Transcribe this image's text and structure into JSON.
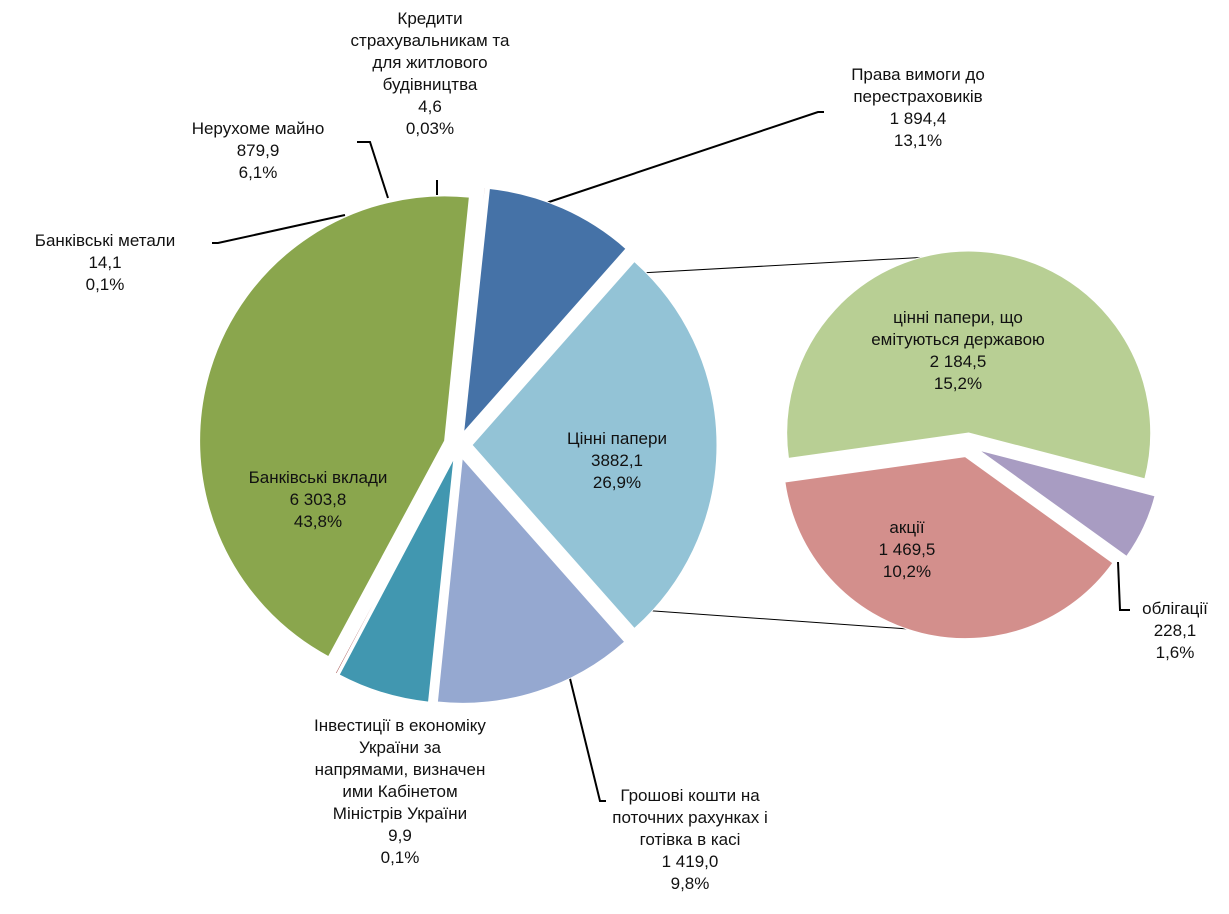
{
  "chart_data": {
    "type": "pie-of-pie",
    "categories": [
      "Цінні папери",
      "Права вимоги до\nперестраховиків",
      "Кредити\nстрахувальникам та\nдля житлового\nбудівництва",
      "Нерухоме майно",
      "Банківські метали",
      "Банківські вклади",
      "Інвестиції в економіку\nУкраїни за\nнапрямами, визначен\nими Кабінетом\nМіністрів України",
      "Грошові кошти на\nпоточних рахунках і\nготівка в касі"
    ],
    "values": [
      3882.1,
      1894.4,
      4.6,
      879.9,
      14.1,
      6303.8,
      9.9,
      1419.0
    ],
    "value_labels": [
      "3882,1",
      "1 894,4",
      "4,6",
      "879,9",
      "14,1",
      "6 303,8",
      "9,9",
      "1 419,0"
    ],
    "percents": [
      26.9,
      13.1,
      0.03,
      6.1,
      0.1,
      43.8,
      0.1,
      9.8
    ],
    "percent_labels": [
      "26,9%",
      "13,1%",
      "0,03%",
      "6,1%",
      "0,1%",
      "43,8%",
      "0,1%",
      "9,8%"
    ],
    "colors": [
      "#93c3d6",
      "#95a8d0",
      "#e8eef4",
      "#4197b0",
      "#a04a48",
      "#8aa64d",
      "#8b2a2a",
      "#4572a7"
    ],
    "secondary": {
      "categories": [
        "цінні папери, що\nемітуються державою",
        "акції",
        "облігації"
      ],
      "values": [
        2184.5,
        1469.5,
        228.1
      ],
      "value_labels": [
        "2 184,5",
        "1 469,5",
        "228,1"
      ],
      "percents": [
        15.2,
        10.2,
        1.6
      ],
      "percent_labels": [
        "15,2%",
        "10,2%",
        "1,6%"
      ],
      "colors": [
        "#b8cf94",
        "#d38f8c",
        "#a89cc2"
      ]
    }
  }
}
